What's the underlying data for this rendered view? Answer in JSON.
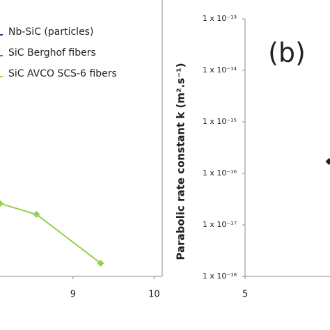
{
  "chart_data": [
    {
      "type": "line",
      "log_y": true,
      "series": [
        {
          "name": "Nb-SiC (particles)",
          "color": "#1f3b73",
          "x": [
            8.1,
            8.55,
            9.34
          ],
          "values": [
            null,
            null,
            null
          ]
        },
        {
          "name": "SiC Berghof fibers",
          "color": "#c0504d",
          "x": [
            8.1,
            8.55,
            9.34
          ],
          "values": [
            null,
            null,
            null
          ]
        },
        {
          "name": "SiC AVCO SCS-6 fibers",
          "color": "#92d050",
          "x": [
            8.1,
            8.55,
            9.34
          ],
          "values": [
            2.6e-17,
            1.6e-17,
            1.8e-18
          ]
        }
      ],
      "xlim": [
        8.1,
        10.1
      ],
      "xticks": [
        9,
        10
      ],
      "ylim": [
        1e-18,
        1e-13
      ]
    },
    {
      "type": "scatter",
      "log_y": true,
      "panel_label": "(b)",
      "y_label": "Parabolic rate constant k (m².s⁻¹)",
      "series": [
        {
          "color": "#222222",
          "x": [
            6.02
          ],
          "values": [
            1.7e-16
          ]
        }
      ],
      "xlim": [
        5,
        6.1
      ],
      "xticks": [
        5
      ],
      "ylim": [
        1e-18,
        1e-13
      ],
      "yticks": [
        {
          "value": 1e-13,
          "label": "1 x 10⁻¹³"
        },
        {
          "value": 1e-14,
          "label": "1 x 10⁻¹⁴"
        },
        {
          "value": 1e-15,
          "label": "1 x 10⁻¹⁵"
        },
        {
          "value": 1e-16,
          "label": "1 x 10⁻¹⁶"
        },
        {
          "value": 1e-17,
          "label": "1 x 10⁻¹⁷"
        },
        {
          "value": 1e-18,
          "label": "1 x 10⁻¹⁸"
        }
      ]
    }
  ]
}
